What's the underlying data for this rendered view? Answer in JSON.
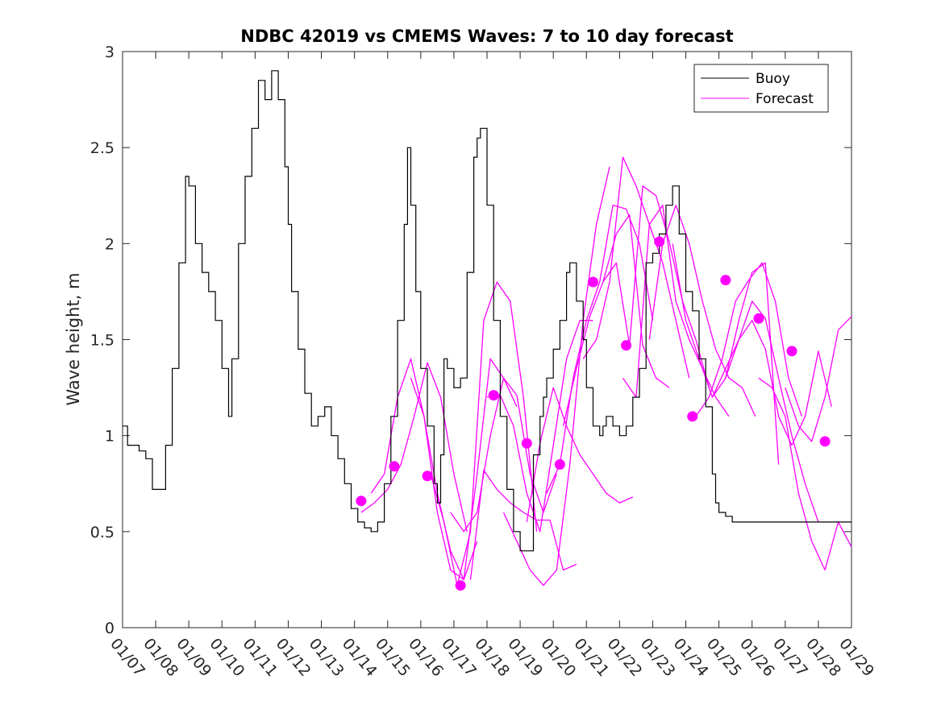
{
  "chart_data": {
    "type": "line",
    "title": "NDBC 42019 vs CMEMS Waves: 7 to 10 day forecast",
    "xlabel": "",
    "ylabel": "Wave height, m",
    "xlim": [
      0,
      22
    ],
    "ylim": [
      0,
      3
    ],
    "x_ticks": [
      0,
      1,
      2,
      3,
      4,
      5,
      6,
      7,
      8,
      9,
      10,
      11,
      12,
      13,
      14,
      15,
      16,
      17,
      18,
      19,
      20,
      21,
      22
    ],
    "x_tick_labels": [
      "01/07",
      "01/08",
      "01/09",
      "01/10",
      "01/11",
      "01/12",
      "01/13",
      "01/14",
      "01/15",
      "01/16",
      "01/17",
      "01/18",
      "01/19",
      "01/20",
      "01/21",
      "01/22",
      "01/23",
      "01/24",
      "01/25",
      "01/26",
      "01/27",
      "01/28",
      "01/29"
    ],
    "y_ticks": [
      0,
      0.5,
      1,
      1.5,
      2,
      2.5,
      3
    ],
    "y_tick_labels": [
      "0",
      "0.5",
      "1",
      "1.5",
      "2",
      "2.5",
      "3"
    ],
    "legend": {
      "location": "top-right",
      "entries": [
        {
          "label": "Buoy",
          "color": "#000000"
        },
        {
          "label": "Forecast",
          "color": "#ff00ff"
        }
      ]
    },
    "colors": {
      "buoy": "#000000",
      "forecast": "#ff00ff"
    },
    "buoy": {
      "name": "Buoy",
      "x": [
        0,
        0.15,
        0.5,
        0.7,
        0.9,
        1.2,
        1.3,
        1.5,
        1.7,
        1.9,
        2.0,
        2.2,
        2.4,
        2.6,
        2.8,
        3.0,
        3.2,
        3.3,
        3.5,
        3.7,
        3.9,
        4.1,
        4.3,
        4.5,
        4.7,
        4.9,
        5.0,
        5.1,
        5.3,
        5.5,
        5.7,
        5.9,
        6.1,
        6.3,
        6.5,
        6.7,
        6.9,
        7.1,
        7.3,
        7.5,
        7.7,
        7.9,
        8.1,
        8.3,
        8.5,
        8.6,
        8.7,
        8.85,
        9.0,
        9.2,
        9.4,
        9.5,
        9.6,
        9.7,
        9.8,
        10.0,
        10.2,
        10.4,
        10.6,
        10.7,
        10.8,
        11.0,
        11.2,
        11.4,
        11.6,
        11.8,
        12.0,
        12.2,
        12.4,
        12.6,
        12.7,
        12.8,
        13.0,
        13.2,
        13.4,
        13.5,
        13.7,
        13.9,
        14.0,
        14.2,
        14.4,
        14.5,
        14.6,
        14.8,
        15.0,
        15.2,
        15.4,
        15.6,
        15.8,
        16.0,
        16.2,
        16.4,
        16.6,
        16.8,
        17.0,
        17.2,
        17.4,
        17.6,
        17.8,
        17.9,
        18.0,
        18.2,
        18.4,
        18.6,
        18.8,
        19.0,
        19.2,
        19.4,
        19.6,
        19.8,
        20.0,
        20.2,
        20.4,
        20.6,
        20.8,
        21.0,
        21.2,
        21.4,
        21.6,
        21.8,
        22.0
      ],
      "y": [
        1.05,
        0.95,
        0.92,
        0.88,
        0.72,
        0.72,
        0.95,
        1.35,
        1.9,
        2.35,
        2.3,
        2.0,
        1.85,
        1.75,
        1.6,
        1.35,
        1.1,
        1.4,
        2.0,
        2.35,
        2.6,
        2.85,
        2.75,
        2.9,
        2.75,
        2.4,
        2.1,
        1.75,
        1.45,
        1.22,
        1.05,
        1.1,
        1.15,
        1.0,
        0.88,
        0.75,
        0.62,
        0.55,
        0.52,
        0.5,
        0.55,
        0.75,
        1.1,
        1.6,
        2.1,
        2.5,
        2.2,
        1.75,
        1.35,
        1.05,
        0.75,
        0.65,
        0.9,
        1.4,
        1.35,
        1.25,
        1.3,
        1.85,
        2.45,
        2.55,
        2.6,
        2.2,
        1.6,
        1.1,
        0.72,
        0.5,
        0.4,
        0.4,
        0.9,
        1.1,
        1.2,
        1.3,
        1.45,
        1.6,
        1.85,
        1.9,
        1.7,
        1.5,
        1.25,
        1.05,
        1.0,
        1.05,
        1.1,
        1.05,
        1.0,
        1.05,
        1.2,
        1.35,
        1.9,
        1.95,
        2.05,
        2.2,
        2.3,
        2.05,
        1.75,
        1.65,
        1.4,
        1.15,
        0.8,
        0.65,
        0.6,
        0.58,
        0.55,
        0.55,
        0.55,
        0.55,
        0.55,
        0.55,
        0.55,
        0.55,
        0.55,
        0.55,
        0.55,
        0.55,
        0.55,
        0.55,
        0.55,
        0.55,
        0.55,
        0.55,
        0.55
      ]
    },
    "forecast_series": [
      {
        "name": "Forecast",
        "x": [
          7.2,
          7.6,
          8.0,
          8.4,
          8.8,
          9.2,
          9.6,
          10.0,
          10.4
        ],
        "y": [
          0.6,
          0.65,
          0.72,
          0.85,
          1.1,
          1.38,
          1.2,
          0.8,
          0.5
        ]
      },
      {
        "name": "Forecast",
        "x": [
          7.5,
          7.9,
          8.3,
          8.7,
          9.1,
          9.5,
          9.9,
          10.3,
          10.7
        ],
        "y": [
          0.7,
          0.8,
          1.2,
          1.4,
          1.1,
          0.7,
          0.4,
          0.25,
          0.45
        ]
      },
      {
        "name": "Forecast",
        "x": [
          8.7,
          9.1,
          9.5,
          9.9,
          10.3,
          10.7,
          11.1,
          11.5,
          11.9
        ],
        "y": [
          1.3,
          1.1,
          0.6,
          0.3,
          0.25,
          0.8,
          1.4,
          1.3,
          1.15
        ]
      },
      {
        "name": "Forecast",
        "x": [
          9.3,
          9.7,
          10.1,
          10.5,
          10.9,
          11.3,
          11.7,
          12.1,
          12.5
        ],
        "y": [
          0.8,
          0.55,
          0.22,
          0.5,
          1.6,
          1.8,
          1.7,
          1.2,
          0.5
        ]
      },
      {
        "name": "Forecast",
        "x": [
          9.9,
          10.3,
          10.7,
          11.1,
          11.5,
          11.9,
          12.3,
          12.7,
          13.1
        ],
        "y": [
          0.6,
          0.5,
          0.6,
          1.0,
          1.3,
          1.21,
          0.8,
          0.6,
          0.8
        ]
      },
      {
        "name": "Forecast",
        "x": [
          10.5,
          10.9,
          11.3,
          11.7,
          12.1,
          12.5,
          12.9,
          13.3,
          13.7
        ],
        "y": [
          0.25,
          0.82,
          0.72,
          0.65,
          0.6,
          0.56,
          0.56,
          0.3,
          0.33
        ]
      },
      {
        "name": "Forecast",
        "x": [
          11.0,
          11.4,
          11.8,
          12.2,
          12.6,
          13.0,
          13.4,
          13.8,
          14.2
        ],
        "y": [
          1.2,
          1.21,
          1.05,
          0.7,
          0.5,
          0.95,
          1.4,
          1.6,
          1.6
        ]
      },
      {
        "name": "Forecast",
        "x": [
          11.5,
          11.9,
          12.3,
          12.7,
          13.1,
          13.5,
          13.9,
          14.3,
          14.7
        ],
        "y": [
          0.6,
          0.45,
          0.3,
          0.22,
          0.3,
          0.85,
          1.6,
          2.1,
          2.4
        ]
      },
      {
        "name": "Forecast",
        "x": [
          12.2,
          12.6,
          13.0,
          13.4,
          13.8,
          14.2,
          14.6,
          15.0,
          15.4
        ],
        "y": [
          0.55,
          0.96,
          1.25,
          1.05,
          0.9,
          0.8,
          0.7,
          0.65,
          0.68
        ]
      },
      {
        "name": "Forecast",
        "x": [
          12.8,
          13.2,
          13.6,
          14.0,
          14.4,
          14.8,
          15.2,
          15.6,
          16.0
        ],
        "y": [
          0.7,
          0.85,
          1.3,
          1.6,
          1.8,
          2.2,
          2.18,
          2.0,
          1.6
        ]
      },
      {
        "name": "Forecast",
        "x": [
          13.3,
          13.7,
          14.1,
          14.5,
          14.9,
          15.3,
          15.7,
          16.1,
          16.5
        ],
        "y": [
          1.05,
          1.35,
          1.62,
          1.8,
          2.05,
          2.15,
          1.47,
          1.3,
          1.25
        ]
      },
      {
        "name": "Forecast",
        "x": [
          13.9,
          14.3,
          14.7,
          15.1,
          15.5,
          15.9,
          16.3,
          16.7,
          17.1
        ],
        "y": [
          1.4,
          1.5,
          1.8,
          2.45,
          2.3,
          2.1,
          1.9,
          1.6,
          1.3
        ]
      },
      {
        "name": "Forecast",
        "x": [
          14.5,
          14.9,
          15.3,
          15.7,
          16.1,
          16.5,
          16.9,
          17.3,
          17.7
        ],
        "y": [
          1.8,
          1.9,
          1.47,
          2.3,
          2.25,
          2.01,
          1.7,
          1.5,
          1.25
        ]
      },
      {
        "name": "Forecast",
        "x": [
          15.1,
          15.5,
          15.9,
          16.3,
          16.7,
          17.1,
          17.5,
          17.9,
          18.3
        ],
        "y": [
          1.3,
          1.2,
          2.1,
          2.2,
          1.7,
          1.5,
          1.35,
          1.2,
          1.1
        ]
      },
      {
        "name": "Forecast",
        "x": [
          15.9,
          16.3,
          16.7,
          17.1,
          17.5,
          17.9,
          18.3,
          18.7,
          19.1
        ],
        "y": [
          1.5,
          2.0,
          2.2,
          2.0,
          1.7,
          1.45,
          1.3,
          1.25,
          1.1
        ]
      },
      {
        "name": "Forecast",
        "x": [
          16.6,
          17.0,
          17.4,
          17.8,
          18.2,
          18.6,
          19.0,
          19.4,
          19.8
        ],
        "y": [
          2.0,
          1.6,
          1.4,
          1.2,
          1.3,
          1.6,
          1.85,
          1.9,
          0.85
        ]
      },
      {
        "name": "Forecast",
        "x": [
          17.3,
          17.7,
          18.1,
          18.5,
          18.9,
          19.3,
          19.7,
          20.1,
          20.5
        ],
        "y": [
          1.1,
          1.2,
          1.4,
          1.7,
          1.81,
          1.9,
          1.7,
          1.3,
          1.1
        ]
      },
      {
        "name": "Forecast",
        "x": [
          17.8,
          18.2,
          18.6,
          19.0,
          19.4,
          19.8,
          20.2,
          20.6,
          21.0
        ],
        "y": [
          1.2,
          1.35,
          1.5,
          1.7,
          1.61,
          1.3,
          1.0,
          0.75,
          0.55
        ]
      },
      {
        "name": "Forecast",
        "x": [
          18.2,
          18.6,
          19.0,
          19.4,
          19.8,
          20.2,
          20.6,
          21.0,
          21.4
        ],
        "y": [
          1.3,
          1.5,
          1.6,
          1.45,
          1.1,
          0.95,
          1.1,
          1.44,
          1.15
        ]
      },
      {
        "name": "Forecast",
        "x": [
          19.2,
          19.6,
          20.0,
          20.4,
          20.8,
          21.2,
          21.6,
          22.0
        ],
        "y": [
          1.3,
          1.25,
          1.1,
          0.7,
          0.45,
          0.3,
          0.55,
          0.42
        ]
      },
      {
        "name": "Forecast",
        "x": [
          20.0,
          20.4,
          20.8,
          21.2,
          21.6,
          22.0
        ],
        "y": [
          1.25,
          1.05,
          0.97,
          1.2,
          1.55,
          1.62
        ]
      }
    ],
    "forecast_markers": {
      "name": "Forecast",
      "x": [
        7.2,
        8.2,
        9.2,
        10.2,
        11.2,
        12.2,
        13.2,
        14.2,
        15.2,
        16.2,
        17.2,
        18.2,
        19.2,
        20.2,
        21.2
      ],
      "y": [
        0.66,
        0.84,
        0.79,
        0.22,
        1.21,
        0.96,
        0.85,
        1.8,
        1.47,
        2.01,
        1.1,
        1.81,
        1.61,
        1.44,
        0.97
      ]
    }
  }
}
